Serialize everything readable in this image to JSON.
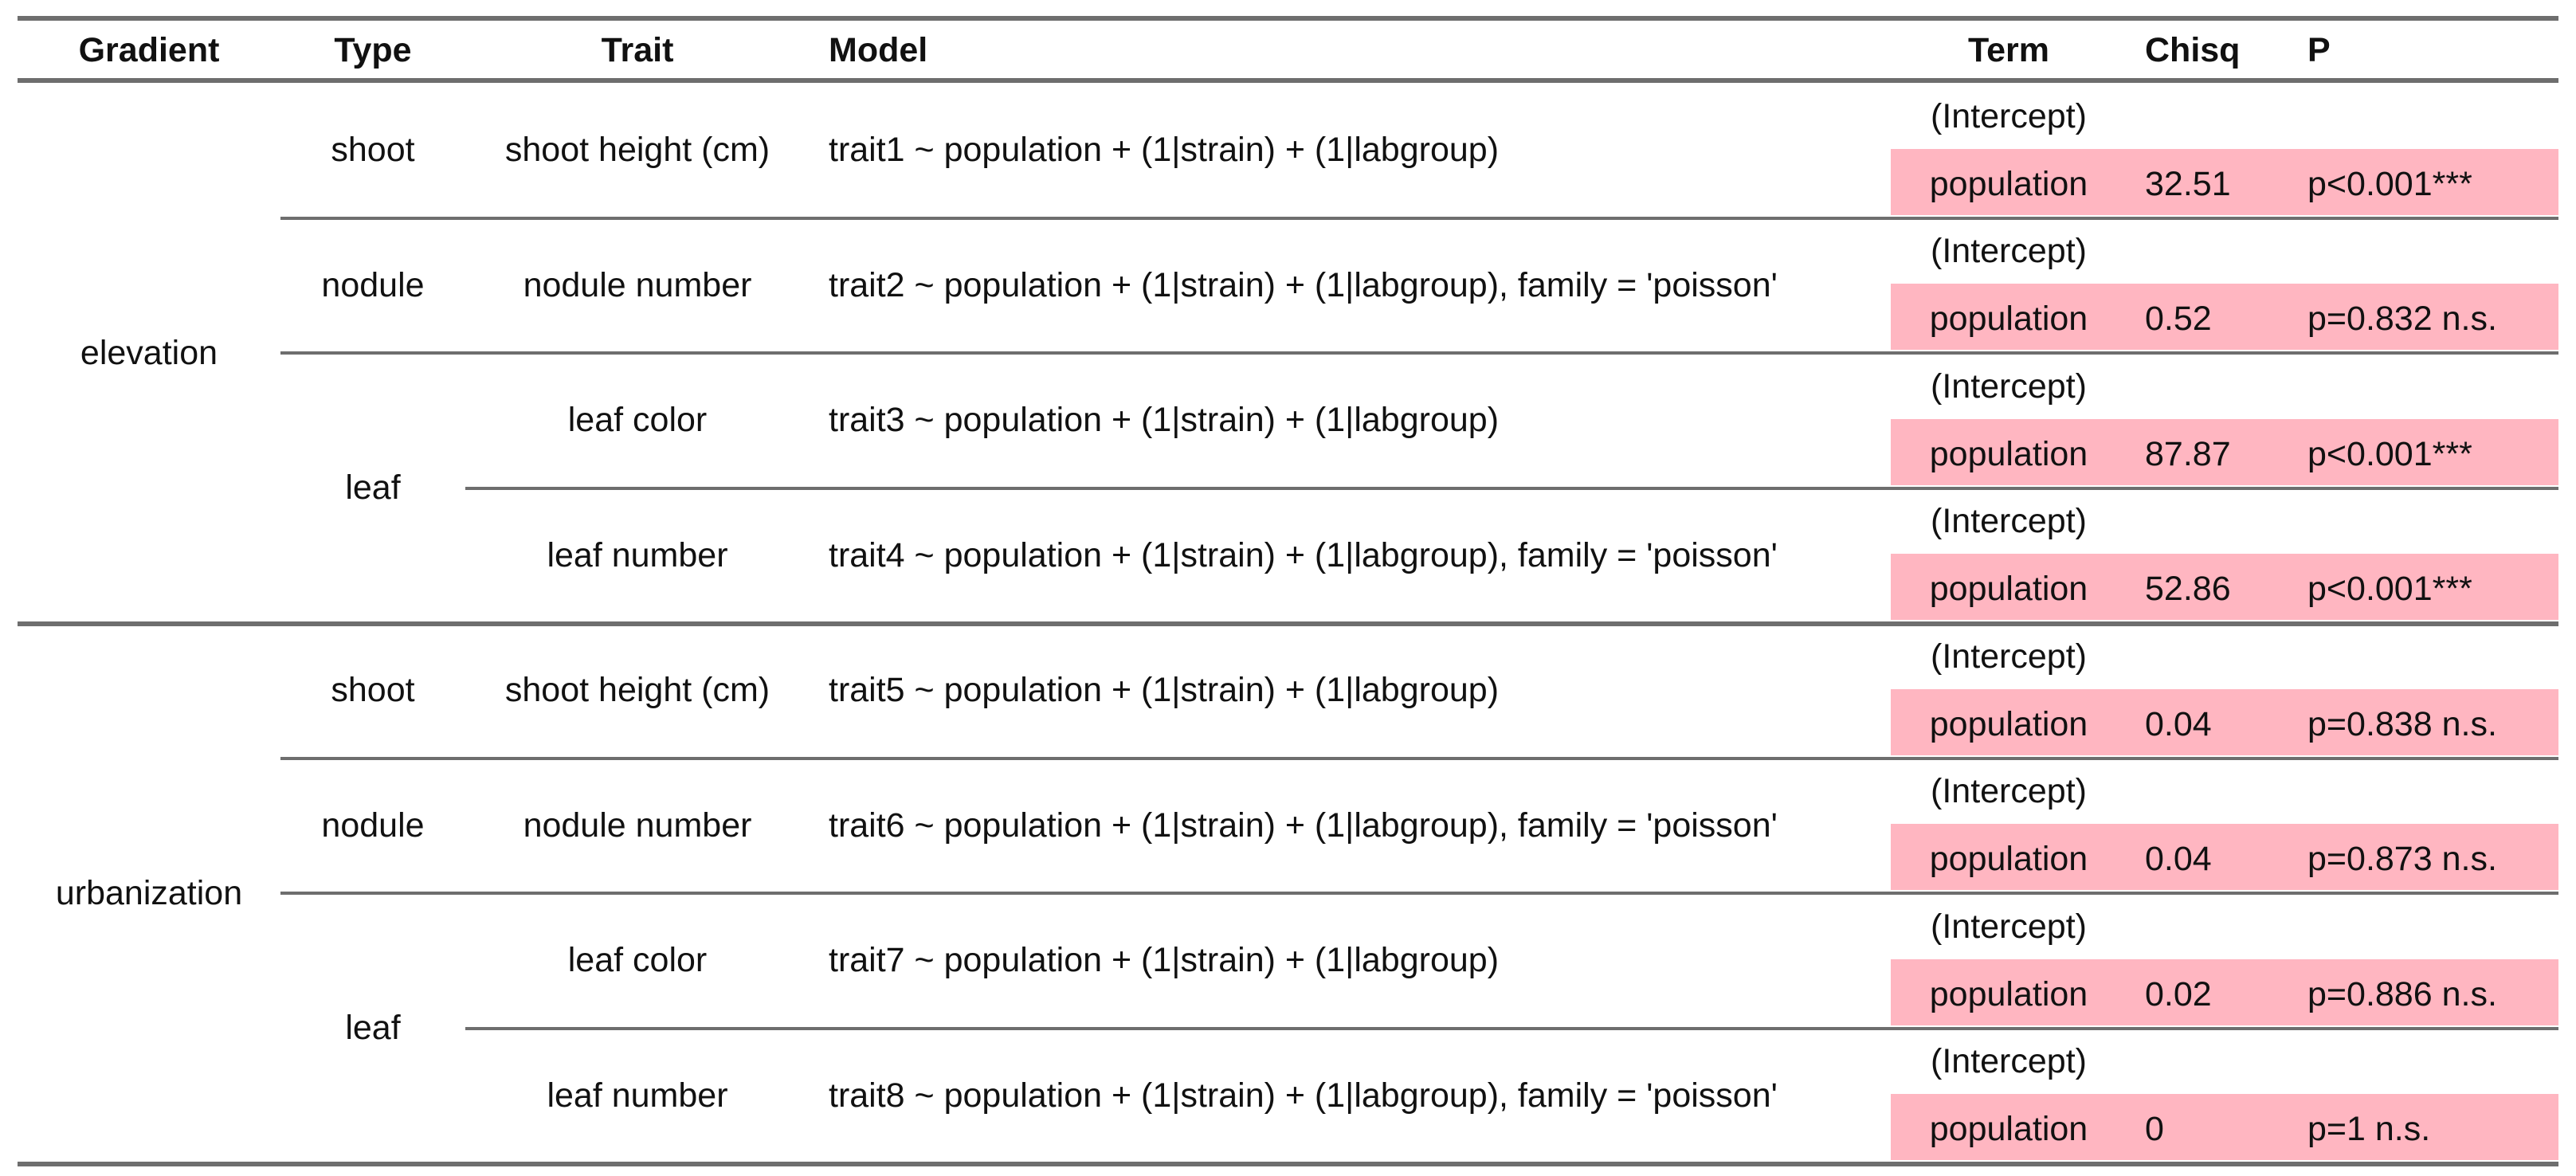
{
  "colors": {
    "highlight": "#ffb6c1",
    "rule": "#6e6e6e"
  },
  "headers": {
    "gradient": "Gradient",
    "type": "Type",
    "trait": "Trait",
    "model": "Model",
    "term": "Term",
    "chisq": "Chisq",
    "p": "P"
  },
  "gradients": [
    {
      "label": "elevation",
      "types": [
        {
          "label": "shoot",
          "traits": [
            {
              "label": "shoot height (cm)",
              "model": "trait1 ~ population + (1|strain) + (1|labgroup)",
              "intercept": "(Intercept)",
              "term": "population",
              "chisq": "32.51",
              "p": "p<0.001***"
            }
          ]
        },
        {
          "label": "nodule",
          "traits": [
            {
              "label": "nodule number",
              "model": "trait2 ~ population + (1|strain) + (1|labgroup), family = 'poisson'",
              "intercept": "(Intercept)",
              "term": "population",
              "chisq": "0.52",
              "p": "p=0.832 n.s."
            }
          ]
        },
        {
          "label": "leaf",
          "traits": [
            {
              "label": "leaf color",
              "model": "trait3 ~ population + (1|strain) + (1|labgroup)",
              "intercept": "(Intercept)",
              "term": "population",
              "chisq": "87.87",
              "p": "p<0.001***"
            },
            {
              "label": "leaf number",
              "model": "trait4 ~ population + (1|strain) + (1|labgroup), family = 'poisson'",
              "intercept": "(Intercept)",
              "term": "population",
              "chisq": "52.86",
              "p": "p<0.001***"
            }
          ]
        }
      ]
    },
    {
      "label": "urbanization",
      "types": [
        {
          "label": "shoot",
          "traits": [
            {
              "label": "shoot height (cm)",
              "model": "trait5 ~ population + (1|strain) + (1|labgroup)",
              "intercept": "(Intercept)",
              "term": "population",
              "chisq": "0.04",
              "p": "p=0.838 n.s."
            }
          ]
        },
        {
          "label": "nodule",
          "traits": [
            {
              "label": "nodule number",
              "model": "trait6 ~ population + (1|strain) + (1|labgroup), family = 'poisson'",
              "intercept": "(Intercept)",
              "term": "population",
              "chisq": "0.04",
              "p": "p=0.873 n.s."
            }
          ]
        },
        {
          "label": "leaf",
          "traits": [
            {
              "label": "leaf color",
              "model": "trait7 ~ population + (1|strain) + (1|labgroup)",
              "intercept": "(Intercept)",
              "term": "population",
              "chisq": "0.02",
              "p": "p=0.886 n.s."
            },
            {
              "label": "leaf number",
              "model": "trait8 ~ population + (1|strain) + (1|labgroup), family = 'poisson'",
              "intercept": "(Intercept)",
              "term": "population",
              "chisq": "0",
              "p": "p=1 n.s."
            }
          ]
        }
      ]
    }
  ]
}
